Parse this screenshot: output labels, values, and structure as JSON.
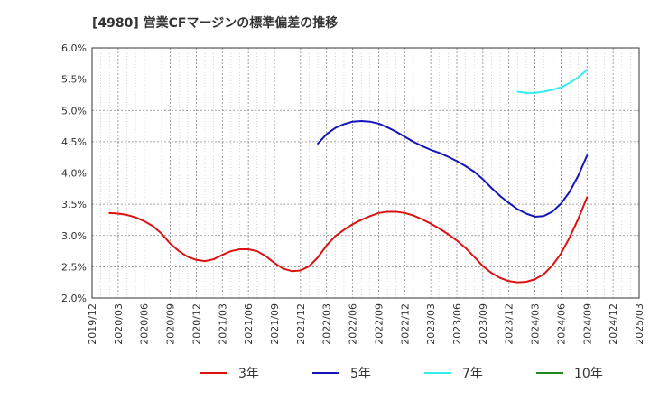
{
  "chart_data": {
    "type": "line",
    "title": "[4980]  営業CFマージンの標準偏差の推移",
    "xlabel": "",
    "ylabel": "",
    "ylim": [
      0.02,
      0.06
    ],
    "ytick_labels": [
      "2.0%",
      "2.5%",
      "3.0%",
      "3.5%",
      "4.0%",
      "4.5%",
      "5.0%",
      "5.5%",
      "6.0%"
    ],
    "yticks": [
      0.02,
      0.025,
      0.03,
      0.035,
      0.04,
      0.045,
      0.05,
      0.055,
      0.06
    ],
    "x_range": [
      "2019-12",
      "2025-03"
    ],
    "xtick_labels": [
      "2019/12",
      "2020/03",
      "2020/06",
      "2020/09",
      "2020/12",
      "2021/03",
      "2021/06",
      "2021/09",
      "2021/12",
      "2022/03",
      "2022/06",
      "2022/09",
      "2022/12",
      "2023/03",
      "2023/06",
      "2023/09",
      "2023/12",
      "2024/03",
      "2024/06",
      "2024/09",
      "2024/12",
      "2025/03"
    ],
    "grid": true,
    "legend_position": "bottom",
    "series": [
      {
        "name": "3年",
        "color": "#dd1111",
        "points": [
          [
            "2020-02",
            0.0336
          ],
          [
            "2020-03",
            0.0335
          ],
          [
            "2020-04",
            0.0333
          ],
          [
            "2020-05",
            0.0329
          ],
          [
            "2020-06",
            0.0323
          ],
          [
            "2020-07",
            0.0315
          ],
          [
            "2020-08",
            0.0303
          ],
          [
            "2020-09",
            0.0287
          ],
          [
            "2020-10",
            0.0275
          ],
          [
            "2020-11",
            0.0266
          ],
          [
            "2020-12",
            0.0261
          ],
          [
            "2021-01",
            0.0259
          ],
          [
            "2021-02",
            0.0262
          ],
          [
            "2021-03",
            0.0269
          ],
          [
            "2021-04",
            0.0275
          ],
          [
            "2021-05",
            0.0278
          ],
          [
            "2021-06",
            0.0278
          ],
          [
            "2021-07",
            0.0275
          ],
          [
            "2021-08",
            0.0267
          ],
          [
            "2021-09",
            0.0256
          ],
          [
            "2021-10",
            0.0247
          ],
          [
            "2021-11",
            0.0243
          ],
          [
            "2021-12",
            0.0244
          ],
          [
            "2022-01",
            0.0251
          ],
          [
            "2022-02",
            0.0265
          ],
          [
            "2022-03",
            0.0284
          ],
          [
            "2022-04",
            0.0299
          ],
          [
            "2022-05",
            0.0309
          ],
          [
            "2022-06",
            0.0318
          ],
          [
            "2022-07",
            0.0325
          ],
          [
            "2022-08",
            0.0331
          ],
          [
            "2022-09",
            0.0336
          ],
          [
            "2022-10",
            0.0338
          ],
          [
            "2022-11",
            0.0338
          ],
          [
            "2022-12",
            0.0336
          ],
          [
            "2023-01",
            0.0332
          ],
          [
            "2023-02",
            0.0326
          ],
          [
            "2023-03",
            0.0319
          ],
          [
            "2023-04",
            0.0311
          ],
          [
            "2023-05",
            0.0302
          ],
          [
            "2023-06",
            0.0292
          ],
          [
            "2023-07",
            0.028
          ],
          [
            "2023-08",
            0.0266
          ],
          [
            "2023-09",
            0.0251
          ],
          [
            "2023-10",
            0.024
          ],
          [
            "2023-11",
            0.0232
          ],
          [
            "2023-12",
            0.0227
          ],
          [
            "2024-01",
            0.0225
          ],
          [
            "2024-02",
            0.0226
          ],
          [
            "2024-03",
            0.023
          ],
          [
            "2024-04",
            0.0238
          ],
          [
            "2024-05",
            0.0252
          ],
          [
            "2024-06",
            0.0271
          ],
          [
            "2024-07",
            0.0297
          ],
          [
            "2024-08",
            0.0327
          ],
          [
            "2024-09",
            0.0361
          ]
        ]
      },
      {
        "name": "5年",
        "color": "#1515bb",
        "points": [
          [
            "2022-02",
            0.0447
          ],
          [
            "2022-03",
            0.0462
          ],
          [
            "2022-04",
            0.0472
          ],
          [
            "2022-05",
            0.0478
          ],
          [
            "2022-06",
            0.0482
          ],
          [
            "2022-07",
            0.0483
          ],
          [
            "2022-08",
            0.0482
          ],
          [
            "2022-09",
            0.0479
          ],
          [
            "2022-10",
            0.0473
          ],
          [
            "2022-11",
            0.0466
          ],
          [
            "2022-12",
            0.0458
          ],
          [
            "2023-01",
            0.045
          ],
          [
            "2023-02",
            0.0443
          ],
          [
            "2023-03",
            0.0437
          ],
          [
            "2023-04",
            0.0432
          ],
          [
            "2023-05",
            0.0426
          ],
          [
            "2023-06",
            0.0419
          ],
          [
            "2023-07",
            0.0411
          ],
          [
            "2023-08",
            0.0402
          ],
          [
            "2023-09",
            0.039
          ],
          [
            "2023-10",
            0.0376
          ],
          [
            "2023-11",
            0.0363
          ],
          [
            "2023-12",
            0.0352
          ],
          [
            "2024-01",
            0.0342
          ],
          [
            "2024-02",
            0.0335
          ],
          [
            "2024-03",
            0.033
          ],
          [
            "2024-04",
            0.0331
          ],
          [
            "2024-05",
            0.0338
          ],
          [
            "2024-06",
            0.0351
          ],
          [
            "2024-07",
            0.037
          ],
          [
            "2024-08",
            0.0396
          ],
          [
            "2024-09",
            0.0428
          ]
        ]
      },
      {
        "name": "7年",
        "color": "#33eeee",
        "points": [
          [
            "2024-01",
            0.053
          ],
          [
            "2024-02",
            0.0528
          ],
          [
            "2024-03",
            0.0528
          ],
          [
            "2024-04",
            0.053
          ],
          [
            "2024-05",
            0.0533
          ],
          [
            "2024-06",
            0.0537
          ],
          [
            "2024-07",
            0.0544
          ],
          [
            "2024-08",
            0.0553
          ],
          [
            "2024-09",
            0.0565
          ]
        ]
      },
      {
        "name": "10年",
        "color": "#228822",
        "points": []
      }
    ]
  }
}
